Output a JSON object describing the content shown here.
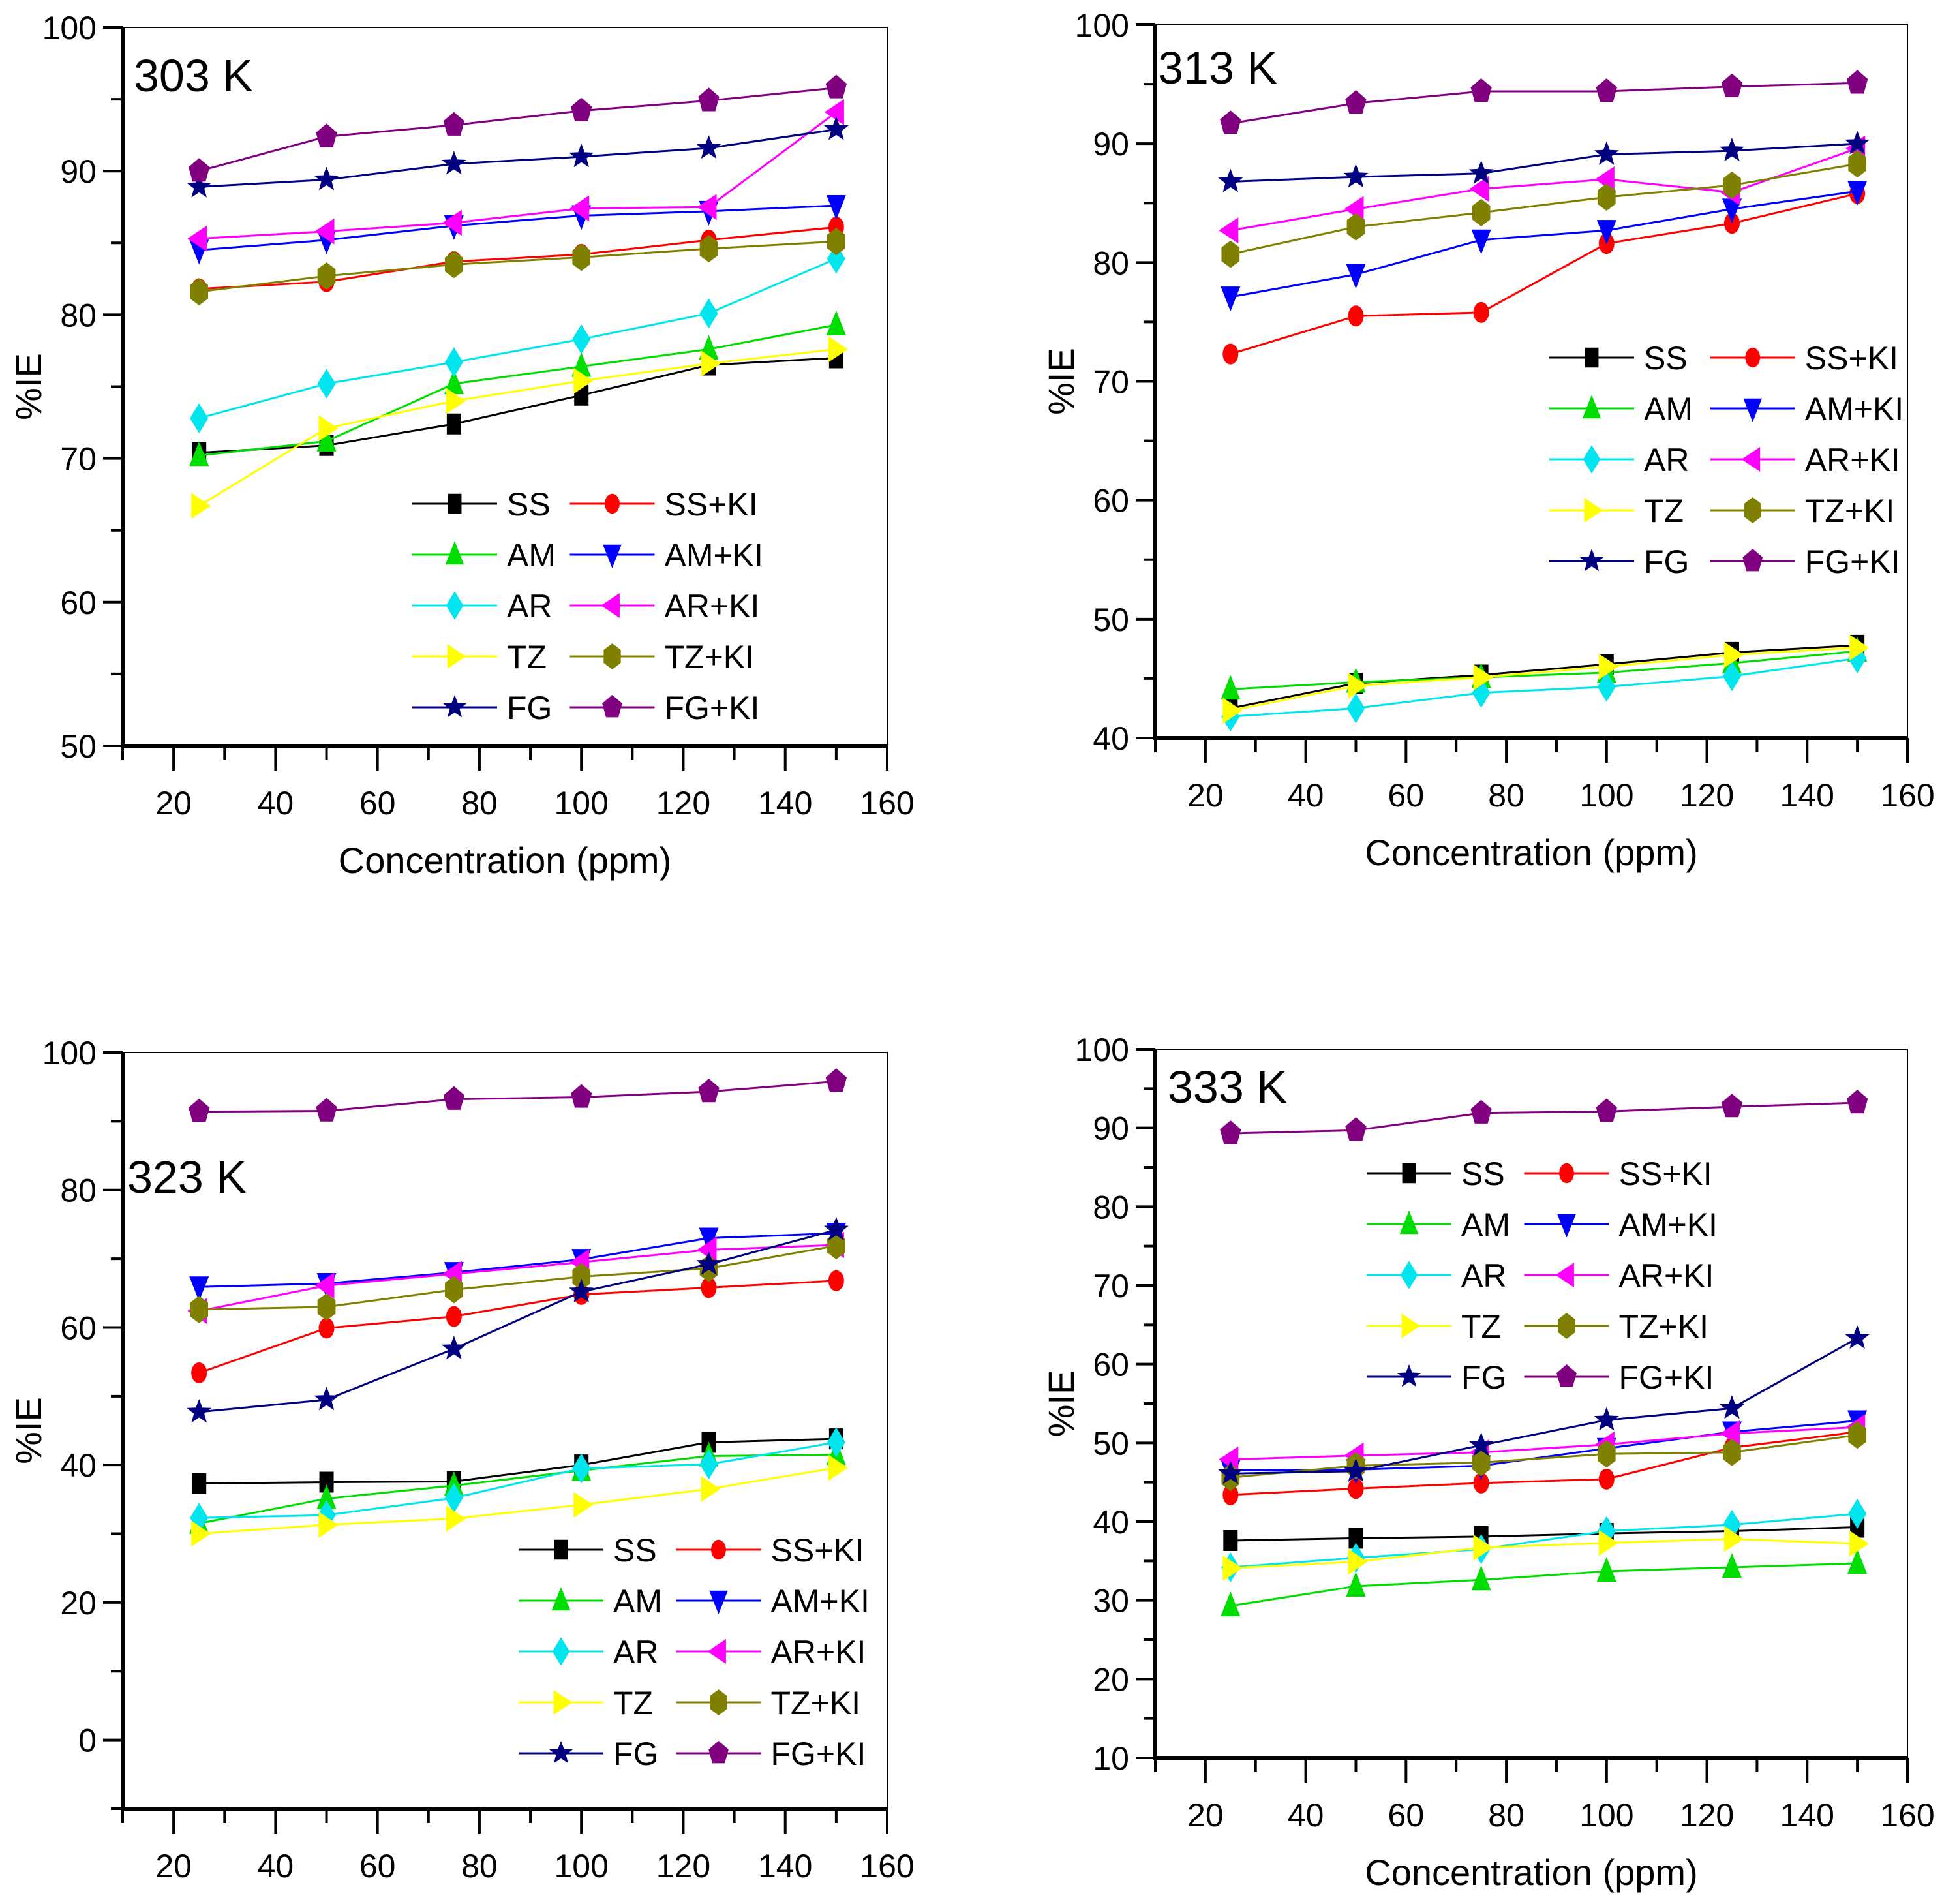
{
  "chart_data": [
    {
      "type": "line",
      "title": "303 K",
      "xlabel": "Concentration (ppm)",
      "ylabel": "%IE",
      "xlim": [
        10,
        160
      ],
      "ylim": [
        50,
        100
      ],
      "xticks": [
        20,
        40,
        60,
        80,
        100,
        120,
        140,
        160
      ],
      "yticks": [
        50,
        60,
        70,
        80,
        90,
        100
      ],
      "grid": false,
      "legend_position": "lower-right",
      "x": [
        25,
        50,
        75,
        100,
        125,
        150
      ],
      "series": [
        {
          "name": "SS",
          "values": [
            70.4,
            70.9,
            72.4,
            74.4,
            76.5,
            77.0
          ]
        },
        {
          "name": "SS+KI",
          "values": [
            81.8,
            82.3,
            83.7,
            84.2,
            85.2,
            86.1
          ]
        },
        {
          "name": "AM",
          "values": [
            70.2,
            71.2,
            75.2,
            76.4,
            77.6,
            79.3
          ]
        },
        {
          "name": "AM+KI",
          "values": [
            84.5,
            85.2,
            86.2,
            86.9,
            87.2,
            87.6
          ]
        },
        {
          "name": "AR",
          "values": [
            72.8,
            75.2,
            76.7,
            78.3,
            80.1,
            83.9
          ]
        },
        {
          "name": "AR+KI",
          "values": [
            85.3,
            85.8,
            86.4,
            87.4,
            87.5,
            94.1
          ]
        },
        {
          "name": "TZ",
          "values": [
            66.7,
            72.1,
            74.0,
            75.4,
            76.6,
            77.6
          ]
        },
        {
          "name": "TZ+KI",
          "values": [
            81.6,
            82.7,
            83.5,
            84.0,
            84.6,
            85.1
          ]
        },
        {
          "name": "FG",
          "values": [
            88.9,
            89.4,
            90.5,
            91.0,
            91.6,
            92.9
          ]
        },
        {
          "name": "FG+KI",
          "values": [
            90.0,
            92.4,
            93.2,
            94.2,
            94.9,
            95.8
          ]
        }
      ]
    },
    {
      "type": "line",
      "title": "313 K",
      "xlabel": "Concentration (ppm)",
      "ylabel": "%IE",
      "xlim": [
        10,
        160
      ],
      "ylim": [
        40,
        100
      ],
      "xticks": [
        20,
        40,
        60,
        80,
        100,
        120,
        140,
        160
      ],
      "yticks": [
        40,
        50,
        60,
        70,
        80,
        90,
        100
      ],
      "grid": false,
      "legend_position": "center-right",
      "x": [
        25,
        50,
        75,
        100,
        125,
        150
      ],
      "series": [
        {
          "name": "SS",
          "values": [
            42.5,
            44.6,
            45.3,
            46.2,
            47.2,
            47.8
          ]
        },
        {
          "name": "SS+KI",
          "values": [
            72.3,
            75.5,
            75.8,
            81.6,
            83.3,
            85.8
          ]
        },
        {
          "name": "AM",
          "values": [
            44.1,
            44.7,
            45.1,
            45.5,
            46.3,
            47.3
          ]
        },
        {
          "name": "AM+KI",
          "values": [
            77.1,
            79.0,
            81.9,
            82.7,
            84.5,
            86.0
          ]
        },
        {
          "name": "AR",
          "values": [
            41.8,
            42.5,
            43.8,
            44.3,
            45.2,
            46.7
          ]
        },
        {
          "name": "AR+KI",
          "values": [
            82.7,
            84.5,
            86.2,
            87.0,
            85.9,
            89.6
          ]
        },
        {
          "name": "TZ",
          "values": [
            42.3,
            44.4,
            45.1,
            46.0,
            47.0,
            47.6
          ]
        },
        {
          "name": "TZ+KI",
          "values": [
            80.7,
            83.0,
            84.2,
            85.5,
            86.5,
            88.3
          ]
        },
        {
          "name": "FG",
          "values": [
            86.8,
            87.2,
            87.5,
            89.1,
            89.4,
            90.0
          ]
        },
        {
          "name": "FG+KI",
          "values": [
            91.7,
            93.4,
            94.4,
            94.4,
            94.8,
            95.1
          ]
        }
      ]
    },
    {
      "type": "line",
      "title": "323 K",
      "xlabel": "Concentration (ppm)",
      "ylabel": "%IE",
      "xlim": [
        10,
        160
      ],
      "ylim": [
        -10,
        100
      ],
      "xticks": [
        20,
        40,
        60,
        80,
        100,
        120,
        140,
        160
      ],
      "yticks": [
        0,
        20,
        40,
        60,
        80,
        100
      ],
      "grid": false,
      "legend_position": "lower-right",
      "x": [
        25,
        50,
        75,
        100,
        125,
        150
      ],
      "series": [
        {
          "name": "SS",
          "values": [
            37.3,
            37.5,
            37.6,
            40.0,
            43.3,
            43.8
          ]
        },
        {
          "name": "SS+KI",
          "values": [
            53.4,
            59.9,
            61.6,
            64.8,
            65.8,
            66.8
          ]
        },
        {
          "name": "AM",
          "values": [
            31.5,
            35.1,
            37.0,
            39.2,
            41.3,
            41.5
          ]
        },
        {
          "name": "AM+KI",
          "values": [
            65.9,
            66.4,
            68.0,
            69.9,
            73.0,
            73.7
          ]
        },
        {
          "name": "AR",
          "values": [
            32.3,
            32.7,
            35.2,
            39.5,
            40.1,
            43.3
          ]
        },
        {
          "name": "AR+KI",
          "values": [
            62.4,
            66.1,
            67.8,
            69.5,
            71.3,
            72.0
          ]
        },
        {
          "name": "TZ",
          "values": [
            30.0,
            31.3,
            32.2,
            34.2,
            36.5,
            39.6
          ]
        },
        {
          "name": "TZ+KI",
          "values": [
            62.6,
            63.0,
            65.5,
            67.4,
            68.6,
            71.9
          ]
        },
        {
          "name": "FG",
          "values": [
            47.7,
            49.5,
            56.9,
            65.2,
            69.2,
            74.2
          ]
        },
        {
          "name": "FG+KI",
          "values": [
            91.4,
            91.5,
            93.2,
            93.5,
            94.3,
            95.8
          ]
        }
      ]
    },
    {
      "type": "line",
      "title": "333 K",
      "xlabel": "Concentration (ppm)",
      "ylabel": "%IE",
      "xlim": [
        10,
        160
      ],
      "ylim": [
        10,
        100
      ],
      "xticks": [
        20,
        40,
        60,
        80,
        100,
        120,
        140,
        160
      ],
      "yticks": [
        10,
        20,
        30,
        40,
        50,
        60,
        70,
        80,
        90,
        100
      ],
      "grid": false,
      "legend_position": "top-center",
      "x": [
        25,
        50,
        75,
        100,
        125,
        150
      ],
      "series": [
        {
          "name": "SS",
          "values": [
            37.6,
            37.9,
            38.1,
            38.5,
            38.8,
            39.3
          ]
        },
        {
          "name": "SS+KI",
          "values": [
            43.4,
            44.2,
            44.9,
            45.4,
            49.4,
            51.4
          ]
        },
        {
          "name": "AM",
          "values": [
            29.3,
            31.8,
            32.6,
            33.7,
            34.2,
            34.7
          ]
        },
        {
          "name": "AM+KI",
          "values": [
            46.5,
            46.6,
            47.1,
            49.3,
            51.4,
            52.8
          ]
        },
        {
          "name": "AR",
          "values": [
            34.2,
            35.4,
            36.5,
            38.8,
            39.6,
            41.0
          ]
        },
        {
          "name": "AR+KI",
          "values": [
            47.9,
            48.4,
            48.8,
            49.8,
            51.2,
            52.0
          ]
        },
        {
          "name": "TZ",
          "values": [
            34.1,
            34.9,
            36.7,
            37.3,
            37.8,
            37.2
          ]
        },
        {
          "name": "TZ+KI",
          "values": [
            45.6,
            47.1,
            47.5,
            48.6,
            48.8,
            51.0
          ]
        },
        {
          "name": "FG",
          "values": [
            46.1,
            46.4,
            49.7,
            52.9,
            54.4,
            63.3
          ]
        },
        {
          "name": "FG+KI",
          "values": [
            89.3,
            89.7,
            91.9,
            92.1,
            92.7,
            93.2
          ]
        }
      ]
    }
  ],
  "series_styles": {
    "SS": {
      "color": "#000000",
      "marker": "square"
    },
    "SS+KI": {
      "color": "#ff0000",
      "marker": "circle"
    },
    "AM": {
      "color": "#00dd00",
      "marker": "triangle-up"
    },
    "AM+KI": {
      "color": "#0000ff",
      "marker": "triangle-down"
    },
    "AR": {
      "color": "#00e5ee",
      "marker": "diamond"
    },
    "AR+KI": {
      "color": "#ff00ff",
      "marker": "triangle-left"
    },
    "TZ": {
      "color": "#ffff00",
      "marker": "triangle-right"
    },
    "TZ+KI": {
      "color": "#808000",
      "marker": "hexagon"
    },
    "FG": {
      "color": "#000080",
      "marker": "star"
    },
    "FG+KI": {
      "color": "#800080",
      "marker": "pentagon"
    }
  }
}
